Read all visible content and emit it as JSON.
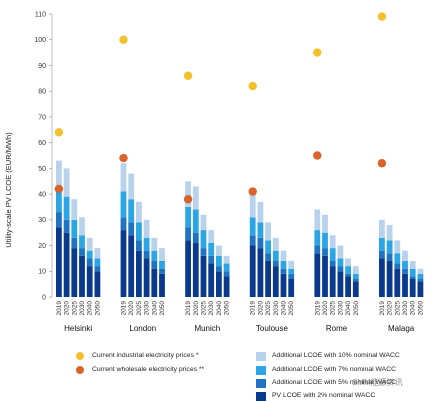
{
  "chart_data": {
    "type": "bar",
    "title": "",
    "ylabel": "Utility-scale PV LCOE (EUR/MWh)",
    "ylim": [
      0,
      110
    ],
    "yticks": [
      0,
      10,
      20,
      30,
      40,
      50,
      60,
      70,
      80,
      90,
      100,
      110
    ],
    "years": [
      "2019",
      "2020",
      "2025",
      "2030",
      "2040",
      "2050"
    ],
    "cities": [
      {
        "name": "Helsinki",
        "industrial": 64,
        "wholesale": 42,
        "base": [
          27,
          25,
          19,
          16,
          12,
          10
        ],
        "w5": [
          33,
          30,
          23,
          19,
          15,
          12
        ],
        "w7": [
          41,
          39,
          30,
          24,
          18,
          15
        ],
        "w10": [
          53,
          50,
          38,
          31,
          23,
          19
        ]
      },
      {
        "name": "London",
        "industrial": 100,
        "wholesale": 54,
        "base": [
          26,
          24,
          18,
          15,
          11,
          9
        ],
        "w5": [
          31,
          29,
          22,
          18,
          14,
          11
        ],
        "w7": [
          41,
          38,
          29,
          23,
          18,
          14
        ],
        "w10": [
          52,
          48,
          37,
          30,
          23,
          19
        ]
      },
      {
        "name": "Munich",
        "industrial": 86,
        "wholesale": 38,
        "base": [
          22,
          21,
          16,
          13,
          10,
          8
        ],
        "w5": [
          27,
          25,
          19,
          16,
          12,
          10
        ],
        "w7": [
          35,
          34,
          26,
          21,
          16,
          13
        ],
        "w10": [
          45,
          43,
          32,
          26,
          20,
          16
        ]
      },
      {
        "name": "Toulouse",
        "industrial": 82,
        "wholesale": 41,
        "base": [
          20,
          19,
          14,
          12,
          9,
          7
        ],
        "w5": [
          24,
          23,
          17,
          14,
          11,
          9
        ],
        "w7": [
          31,
          29,
          22,
          18,
          14,
          11
        ],
        "w10": [
          40,
          37,
          29,
          23,
          18,
          14
        ]
      },
      {
        "name": "Rome",
        "industrial": 95,
        "wholesale": 55,
        "base": [
          17,
          16,
          12,
          10,
          8,
          6
        ],
        "w5": [
          20,
          19,
          14,
          12,
          9,
          7
        ],
        "w7": [
          26,
          25,
          19,
          15,
          12,
          9
        ],
        "w10": [
          34,
          32,
          24,
          20,
          15,
          12
        ]
      },
      {
        "name": "Malaga",
        "industrial": 109,
        "wholesale": 52,
        "base": [
          15,
          14,
          11,
          9,
          7,
          6
        ],
        "w5": [
          18,
          17,
          13,
          11,
          8,
          7
        ],
        "w7": [
          23,
          22,
          17,
          14,
          11,
          9
        ],
        "w10": [
          30,
          28,
          22,
          18,
          14,
          11
        ]
      }
    ],
    "colors": {
      "base": "#0b3a8c",
      "w5": "#1f73c2",
      "w7": "#2ba5e4",
      "w10": "#b9d2ec",
      "industrial": "#f5c12a",
      "wholesale": "#d9632a"
    }
  },
  "legend": {
    "industrial": "Current industrial electricity prices *",
    "wholesale": "Current wholesale electricity prices **",
    "w10": "Additional LCOE with 10% nominal WACC",
    "w7": "Additional LCOE with 7% nominal WACC",
    "w5": "Additional LCOE with 5% nominal WACC",
    "base": "PV LCOE with 2% nominal WACC"
  },
  "watermark": "SMM能源资讯"
}
